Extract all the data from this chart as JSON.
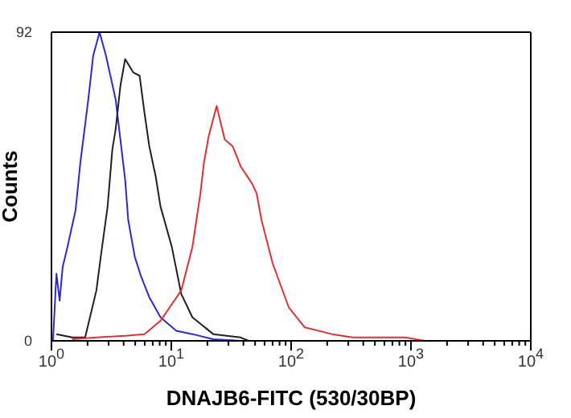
{
  "chart_data": {
    "type": "line",
    "xlabel": "DNAJB6-FITC (530/30BP)",
    "ylabel": "Counts",
    "log": "x",
    "xlim": [
      1,
      10000
    ],
    "ylim": [
      0,
      92
    ],
    "yticks": [
      0,
      92
    ],
    "xticks": [
      {
        "value": 1,
        "label": "10$^{0}$"
      },
      {
        "value": 2,
        "label": null
      },
      {
        "value": 3,
        "label": null
      },
      {
        "value": 4,
        "label": null
      },
      {
        "value": 5,
        "label": null
      },
      {
        "value": 6,
        "label": null
      },
      {
        "value": 7,
        "label": null
      },
      {
        "value": 8,
        "label": null
      },
      {
        "value": 9,
        "label": null
      },
      {
        "value": 10,
        "label": "10$^{1}$"
      },
      {
        "value": 20,
        "label": null
      },
      {
        "value": 30,
        "label": null
      },
      {
        "value": 40,
        "label": null
      },
      {
        "value": 50,
        "label": null
      },
      {
        "value": 60,
        "label": null
      },
      {
        "value": 70,
        "label": null
      },
      {
        "value": 80,
        "label": null
      },
      {
        "value": 90,
        "label": null
      },
      {
        "value": 100,
        "label": "10$^{2}$"
      },
      {
        "value": 200,
        "label": null
      },
      {
        "value": 300,
        "label": null
      },
      {
        "value": 400,
        "label": null
      },
      {
        "value": 500,
        "label": null
      },
      {
        "value": 600,
        "label": null
      },
      {
        "value": 700,
        "label": null
      },
      {
        "value": 800,
        "label": null
      },
      {
        "value": 900,
        "label": null
      },
      {
        "value": 1000,
        "label": "10$^{3}$"
      },
      {
        "value": 2000,
        "label": null
      },
      {
        "value": 3000,
        "label": null
      },
      {
        "value": 4000,
        "label": null
      },
      {
        "value": 5000,
        "label": null
      },
      {
        "value": 6000,
        "label": null
      },
      {
        "value": 7000,
        "label": null
      },
      {
        "value": 8000,
        "label": null
      },
      {
        "value": 9000,
        "label": null
      },
      {
        "value": 10000,
        "label": "10$^{4}$"
      }
    ],
    "marker": "none",
    "line_style": "solid",
    "series": [
      {
        "color": "#2a2ad0",
        "x": [
          1.03,
          1.1,
          1.17,
          1.24,
          1.36,
          1.59,
          1.74,
          2.03,
          2.23,
          2.52,
          2.85,
          3.43,
          3.76,
          4.12,
          4.37,
          4.96,
          5.62,
          6.55,
          8.13,
          11,
          15,
          22.4,
          38,
          10000
        ],
        "values": [
          0,
          20,
          12,
          22,
          28,
          39,
          53,
          72,
          85,
          92,
          85,
          72,
          60,
          48,
          36,
          25,
          19,
          13,
          7,
          3,
          2,
          0.5,
          0,
          0
        ]
      },
      {
        "color": "#202020",
        "x": [
          1.1,
          1.49,
          1.91,
          2.37,
          2.6,
          2.94,
          3.22,
          3.43,
          3.76,
          4.12,
          4.81,
          5.44,
          5.97,
          6.55,
          7.41,
          8.13,
          10.1,
          12.1,
          15,
          22.4,
          37.9,
          44.2
        ],
        "values": [
          2,
          1,
          1,
          15,
          26,
          40,
          57,
          63,
          76,
          84,
          80,
          79,
          68,
          58,
          49,
          40,
          28,
          14,
          7,
          2,
          1,
          0
        ]
      },
      {
        "color": "#e03030",
        "x": [
          1.49,
          2.37,
          4.12,
          5.97,
          8.13,
          12.1,
          15,
          17.5,
          18.7,
          20.5,
          23.9,
          27.9,
          32.5,
          37.9,
          47,
          51.5,
          56.6,
          70.2,
          95.5,
          130,
          219,
          327,
          906,
          1310
        ],
        "values": [
          0.5,
          1,
          1.5,
          2,
          6,
          15,
          28,
          44,
          53,
          61,
          70,
          60,
          58,
          52,
          47,
          44,
          36,
          23,
          10,
          4,
          2,
          1,
          1,
          0
        ]
      }
    ]
  }
}
